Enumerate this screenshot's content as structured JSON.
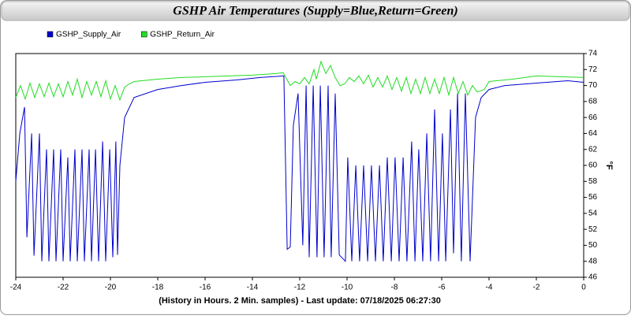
{
  "chart_data": {
    "type": "line",
    "title": "GSHP Air Temperatures (Supply=Blue,Return=Green)",
    "x_label": "(History in Hours. 2 Min. samples) - Last update: 07/18/2025 06:27:30",
    "y_label": "°F",
    "xlim": [
      -24,
      0
    ],
    "xticks": [
      -24,
      -22,
      -20,
      -18,
      -16,
      -14,
      -12,
      -10,
      -8,
      -6,
      -4,
      -2,
      0
    ],
    "ylim": [
      46,
      74
    ],
    "yticks": [
      46,
      48,
      50,
      52,
      54,
      56,
      58,
      60,
      62,
      64,
      66,
      68,
      70,
      72,
      74
    ],
    "y_axis_side": "right",
    "grid": false,
    "legend": "top-left",
    "series": [
      {
        "name": "GSHP_Supply_Air",
        "color": "#0000cc",
        "x": [
          -24,
          -23.83,
          -23.63,
          -23.53,
          -23.33,
          -23.23,
          -23,
          -22.9,
          -22.7,
          -22.6,
          -22.4,
          -22.3,
          -22.1,
          -22,
          -21.8,
          -21.7,
          -21.5,
          -21.4,
          -21.2,
          -21.1,
          -20.9,
          -20.8,
          -20.63,
          -20.5,
          -20.33,
          -20.2,
          -20.03,
          -19.9,
          -19.77,
          -19.7,
          -19.6,
          -19.4,
          -19,
          -18,
          -17,
          -16,
          -14.67,
          -13.67,
          -12.67,
          -12.53,
          -12.4,
          -12.27,
          -12.07,
          -11.87,
          -11.73,
          -11.6,
          -11.43,
          -11.27,
          -11.13,
          -10.97,
          -10.8,
          -10.67,
          -10.5,
          -10.33,
          -10.07,
          -9.97,
          -9.8,
          -9.63,
          -9.47,
          -9.3,
          -9.13,
          -8.97,
          -8.8,
          -8.63,
          -8.47,
          -8.3,
          -8.13,
          -7.97,
          -7.8,
          -7.63,
          -7.47,
          -7.27,
          -7.13,
          -6.97,
          -6.8,
          -6.63,
          -6.47,
          -6.3,
          -6.13,
          -5.97,
          -5.83,
          -5.63,
          -5.5,
          -5.33,
          -5.17,
          -5,
          -4.8,
          -4.57,
          -4.33,
          -4,
          -3.33,
          -2,
          -0.67,
          0
        ],
        "values": [
          58,
          64,
          67.3,
          51,
          64,
          48.7,
          64,
          48,
          62,
          48,
          62,
          48,
          62,
          48,
          61,
          48,
          62,
          48,
          62,
          48,
          62,
          48,
          62,
          48,
          63,
          48,
          62,
          48.5,
          63,
          48.8,
          60,
          66,
          68.5,
          69.5,
          70,
          70.4,
          70.7,
          71,
          71.2,
          49.5,
          49.8,
          65,
          69,
          50,
          70,
          48.5,
          70,
          48.5,
          70,
          48.5,
          70,
          48.5,
          69,
          48.8,
          48,
          61,
          48,
          60,
          48,
          60,
          48,
          60,
          48,
          60,
          48,
          61,
          48,
          61,
          48,
          61,
          48,
          63,
          48,
          62,
          48,
          64,
          48,
          67,
          48,
          64,
          48,
          67,
          49,
          69,
          48,
          69,
          48,
          66,
          68.5,
          69.5,
          70,
          70.3,
          70.6,
          70.4
        ]
      },
      {
        "name": "GSHP_Return_Air",
        "color": "#22dd22",
        "x": [
          -24,
          -23.8,
          -23.6,
          -23.4,
          -23.2,
          -23,
          -22.8,
          -22.6,
          -22.4,
          -22.2,
          -22,
          -21.8,
          -21.6,
          -21.4,
          -21.2,
          -21,
          -20.8,
          -20.6,
          -20.4,
          -20.2,
          -20,
          -19.8,
          -19.6,
          -19.4,
          -19.2,
          -19,
          -18,
          -17,
          -16,
          -15,
          -14,
          -13,
          -12.7,
          -12.4,
          -12.2,
          -12,
          -11.8,
          -11.6,
          -11.4,
          -11.3,
          -11.1,
          -10.9,
          -10.7,
          -10.5,
          -10.3,
          -10.1,
          -9.9,
          -9.7,
          -9.5,
          -9.3,
          -9.1,
          -8.9,
          -8.7,
          -8.5,
          -8.3,
          -8.1,
          -7.9,
          -7.7,
          -7.5,
          -7.3,
          -7.1,
          -6.9,
          -6.7,
          -6.5,
          -6.3,
          -6.1,
          -5.9,
          -5.7,
          -5.5,
          -5.3,
          -5.1,
          -4.9,
          -4.7,
          -4.5,
          -4.2,
          -4,
          -3,
          -2,
          -1,
          0
        ],
        "values": [
          68.5,
          70,
          68.3,
          70.3,
          68.5,
          70.2,
          68.6,
          70.3,
          68.6,
          70.2,
          68.6,
          70.5,
          68.8,
          70.8,
          68.5,
          70.5,
          68.8,
          70.5,
          68.6,
          70.6,
          68.3,
          70,
          68.2,
          69.8,
          70.2,
          70.5,
          70.8,
          71,
          71.1,
          71.2,
          71.3,
          71.5,
          71.6,
          70,
          70.5,
          70.2,
          71,
          70.2,
          72,
          70.8,
          73,
          71.5,
          72.5,
          71,
          70,
          70.2,
          71,
          70.5,
          71.2,
          70.2,
          71.3,
          69.8,
          71,
          69.8,
          71.2,
          69.5,
          71,
          69.3,
          71,
          69,
          70.8,
          69,
          71,
          69,
          70.8,
          69,
          71,
          68.8,
          71,
          69,
          70.5,
          68.8,
          70,
          69.2,
          69.5,
          70.5,
          70.8,
          71.2,
          71.1,
          71
        ]
      }
    ]
  }
}
